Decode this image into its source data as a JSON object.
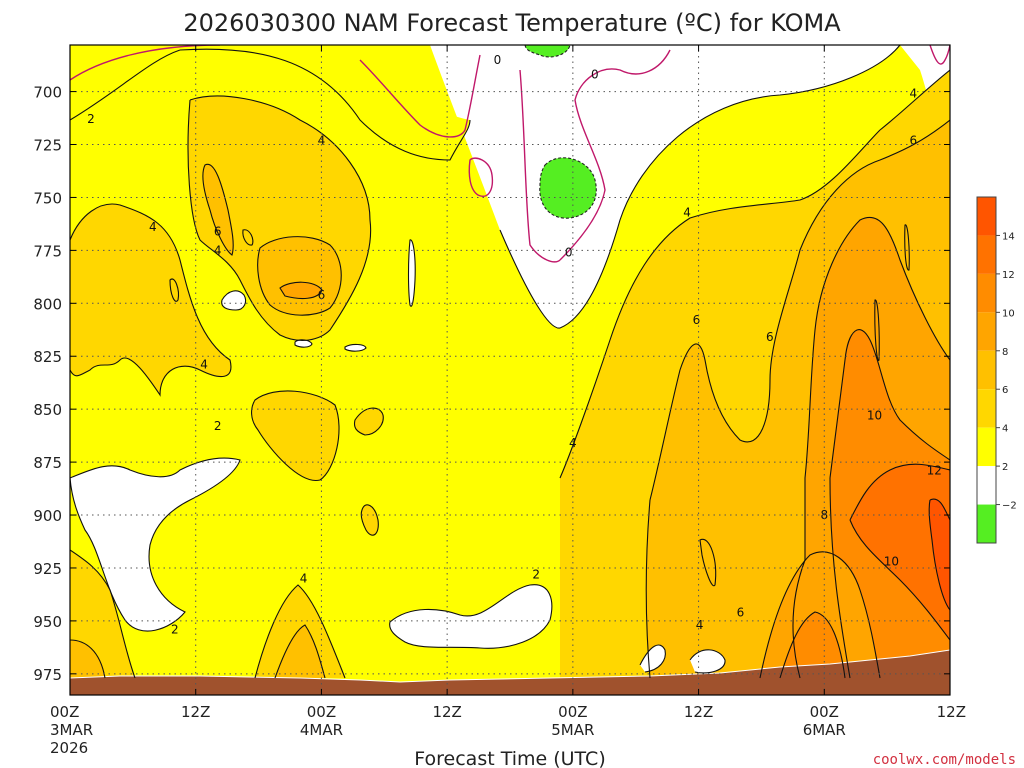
{
  "chart_data": {
    "type": "heatmap",
    "title": "2026030300 NAM Forecast Temperature (ºC) for KOMA",
    "xlabel": "Forecast Time (UTC)",
    "ylabel": "",
    "credit": "coolwx.com/models",
    "x_ticks": [
      {
        "hour": 0,
        "lines": [
          "00Z",
          "3MAR",
          "2026"
        ]
      },
      {
        "hour": 12,
        "lines": [
          "12Z"
        ]
      },
      {
        "hour": 24,
        "lines": [
          "00Z",
          "4MAR"
        ]
      },
      {
        "hour": 36,
        "lines": [
          "12Z"
        ]
      },
      {
        "hour": 48,
        "lines": [
          "00Z",
          "5MAR"
        ]
      },
      {
        "hour": 60,
        "lines": [
          "12Z"
        ]
      },
      {
        "hour": 72,
        "lines": [
          "00Z",
          "6MAR"
        ]
      },
      {
        "hour": 84,
        "lines": [
          "12Z"
        ]
      }
    ],
    "xlim": [
      0,
      84
    ],
    "y_ticks": [
      "700",
      "725",
      "750",
      "775",
      "800",
      "825",
      "850",
      "875",
      "900",
      "925",
      "950",
      "975"
    ],
    "y_tick_values": [
      700,
      725,
      750,
      775,
      800,
      825,
      850,
      875,
      900,
      925,
      950,
      975
    ],
    "ylim": [
      678,
      985
    ],
    "y_axis": "pressure (hPa), decreasing upward",
    "grid": true,
    "colorbar": {
      "ticks": [
        "14",
        "12",
        "10",
        "8",
        "6",
        "4",
        "2",
        "−2"
      ],
      "bins": [
        {
          "range": "above 14",
          "color": "#ff5500"
        },
        {
          "range": "12 to 14",
          "color": "#ff7200"
        },
        {
          "range": "10 to 12",
          "color": "#ff8c00"
        },
        {
          "range": "8 to 10",
          "color": "#ffa500"
        },
        {
          "range": "6 to 8",
          "color": "#ffc000"
        },
        {
          "range": "4 to 6",
          "color": "#ffd700"
        },
        {
          "range": "2 to 4",
          "color": "#ffff00"
        },
        {
          "range": "-2 to 2",
          "color": "#ffffff"
        },
        {
          "range": "below -2",
          "color": "#55ee22"
        }
      ]
    },
    "contour_labels": [
      {
        "text": "0",
        "hour": 40.8,
        "p": 685
      },
      {
        "text": "0",
        "hour": 50.1,
        "p": 692
      },
      {
        "text": "0",
        "hour": 47.6,
        "p": 776
      },
      {
        "text": "2",
        "hour": 2.0,
        "p": 713
      },
      {
        "text": "4",
        "hour": 24.0,
        "p": 723
      },
      {
        "text": "4",
        "hour": 7.9,
        "p": 764
      },
      {
        "text": "6",
        "hour": 14.1,
        "p": 766
      },
      {
        "text": "4",
        "hour": 14.1,
        "p": 775
      },
      {
        "text": "6",
        "hour": 24.0,
        "p": 796
      },
      {
        "text": "4",
        "hour": 12.8,
        "p": 829
      },
      {
        "text": "2",
        "hour": 14.1,
        "p": 858
      },
      {
        "text": "4",
        "hour": 48.0,
        "p": 866
      },
      {
        "text": "4",
        "hour": 22.3,
        "p": 930
      },
      {
        "text": "2",
        "hour": 44.5,
        "p": 928
      },
      {
        "text": "2",
        "hour": 10.0,
        "p": 954
      },
      {
        "text": "4",
        "hour": 58.9,
        "p": 757
      },
      {
        "text": "6",
        "hour": 59.8,
        "p": 808
      },
      {
        "text": "6",
        "hour": 66.8,
        "p": 816
      },
      {
        "text": "4",
        "hour": 80.5,
        "p": 701
      },
      {
        "text": "6",
        "hour": 80.5,
        "p": 723
      },
      {
        "text": "10",
        "hour": 76.8,
        "p": 853
      },
      {
        "text": "12",
        "hour": 82.5,
        "p": 879
      },
      {
        "text": "8",
        "hour": 72.0,
        "p": 900
      },
      {
        "text": "10",
        "hour": 78.4,
        "p": 922
      },
      {
        "text": "6",
        "hour": 64.0,
        "p": 946
      },
      {
        "text": "4",
        "hour": 60.1,
        "p": 952
      }
    ]
  }
}
